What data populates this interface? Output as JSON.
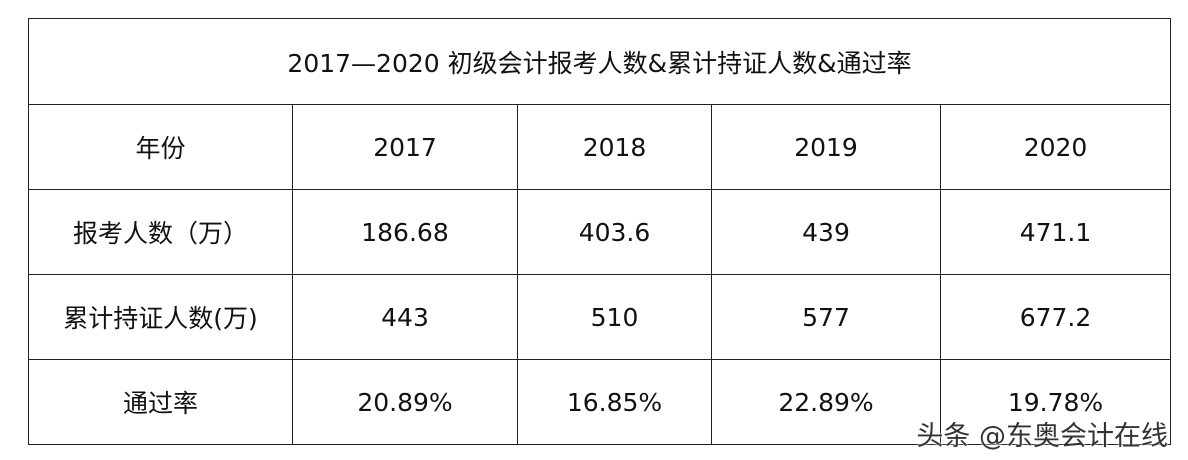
{
  "table": {
    "title": "2017—2020 初级会计报考人数&累计持证人数&通过率",
    "rows": [
      [
        "年份",
        "2017",
        "2018",
        "2019",
        "2020"
      ],
      [
        "报考人数（万）",
        "186.68",
        "403.6",
        "439",
        "471.1"
      ],
      [
        "累计持证人数(万)",
        "443",
        "510",
        "577",
        "677.2"
      ],
      [
        "通过率",
        "20.89%",
        "16.85%",
        "22.89%",
        "19.78%"
      ]
    ]
  },
  "watermark": "头条 @东奥会计在线"
}
